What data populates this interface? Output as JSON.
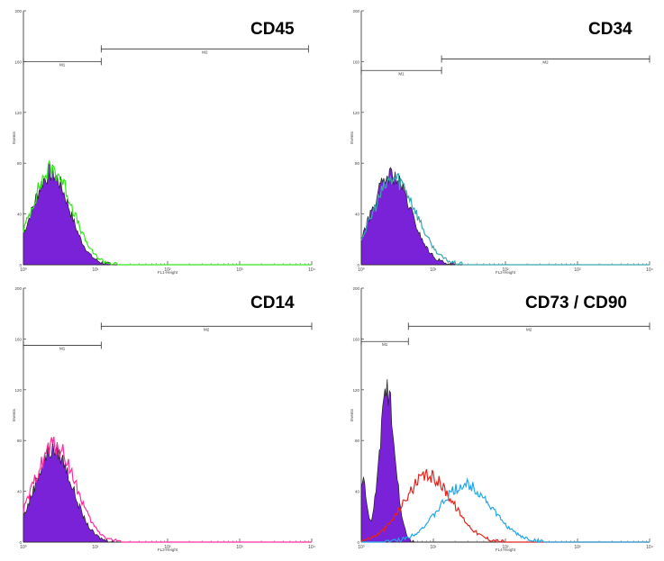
{
  "chart_data": [
    {
      "type": "histogram-overlay",
      "title": "CD45",
      "xlabel": "FL1-Height",
      "ylabel": "Events",
      "x_scale": "log",
      "xlim": [
        1,
        10000
      ],
      "ylim": [
        0,
        200
      ],
      "x_ticks": [
        "10⁰",
        "10¹",
        "10²",
        "10³",
        "10⁴"
      ],
      "y_ticks": [
        "0",
        "40",
        "80",
        "120",
        "160",
        "200"
      ],
      "markers": [
        {
          "label": "M1",
          "x_range": [
            1,
            12
          ],
          "y": 160
        },
        {
          "label": "M2",
          "x_range": [
            12,
            9000
          ],
          "y": 170
        }
      ],
      "series": [
        {
          "role": "isotype-filled",
          "color": "#7a22d8",
          "peak_x": 2.4,
          "peak_y": 72,
          "sigma_decades": 0.26
        },
        {
          "role": "marker-outline",
          "color": "#33e81a",
          "peak_x": 2.5,
          "peak_y": 75,
          "sigma_decades": 0.28
        }
      ]
    },
    {
      "type": "histogram-overlay",
      "title": "CD34",
      "xlabel": "FL2-Height",
      "ylabel": "Events",
      "x_scale": "log",
      "xlim": [
        1,
        10000
      ],
      "ylim": [
        0,
        200
      ],
      "x_ticks": [
        "10⁰",
        "10¹",
        "10²",
        "10³",
        "10⁴"
      ],
      "y_ticks": [
        "0",
        "40",
        "80",
        "120",
        "160",
        "200"
      ],
      "markers": [
        {
          "label": "M1",
          "x_range": [
            1,
            13
          ],
          "y": 153
        },
        {
          "label": "M2",
          "x_range": [
            13,
            10000
          ],
          "y": 162
        }
      ],
      "series": [
        {
          "role": "isotype-filled",
          "color": "#7a22d8",
          "peak_x": 2.6,
          "peak_y": 70,
          "sigma_decades": 0.27
        },
        {
          "role": "marker-outline",
          "color": "#3aa7ad",
          "peak_x": 2.9,
          "peak_y": 68,
          "sigma_decades": 0.3
        }
      ]
    },
    {
      "type": "histogram-overlay",
      "title": "CD14",
      "xlabel": "FL3-Height",
      "ylabel": "Events",
      "x_scale": "log",
      "xlim": [
        1,
        10000
      ],
      "ylim": [
        0,
        200
      ],
      "x_ticks": [
        "10⁰",
        "10¹",
        "10²",
        "10³",
        "10⁴"
      ],
      "y_ticks": [
        "0",
        "40",
        "80",
        "120",
        "160",
        "200"
      ],
      "markers": [
        {
          "label": "M1",
          "x_range": [
            1,
            12
          ],
          "y": 155
        },
        {
          "label": "M2",
          "x_range": [
            12,
            10000
          ],
          "y": 170
        }
      ],
      "series": [
        {
          "role": "isotype-filled",
          "color": "#7a22d8",
          "peak_x": 2.6,
          "peak_y": 73,
          "sigma_decades": 0.26
        },
        {
          "role": "marker-outline",
          "color": "#ff2a9e",
          "peak_x": 2.7,
          "peak_y": 76,
          "sigma_decades": 0.29
        }
      ]
    },
    {
      "type": "histogram-overlay",
      "title": "CD73 / CD90",
      "xlabel": "FL4-Height",
      "ylabel": "Events",
      "x_scale": "log",
      "xlim": [
        1,
        10000
      ],
      "ylim": [
        0,
        200
      ],
      "x_ticks": [
        "10⁰",
        "10¹",
        "10²",
        "10³",
        "10⁴"
      ],
      "y_ticks": [
        "0",
        "40",
        "80",
        "120",
        "160",
        "200"
      ],
      "markers": [
        {
          "label": "M1",
          "x_range": [
            1,
            4.5
          ],
          "y": 158
        },
        {
          "label": "M2",
          "x_range": [
            4.5,
            10000
          ],
          "y": 170
        }
      ],
      "series": [
        {
          "role": "isotype-filled",
          "color": "#7a22d8",
          "peak_x": 2.3,
          "peak_y": 118,
          "sigma_decades": 0.11,
          "secondary_peak_x": 1.05,
          "secondary_peak_y": 48,
          "secondary_sigma_decades": 0.05
        },
        {
          "role": "CD73-outline",
          "color": "#e3241b",
          "peak_x": 8.5,
          "peak_y": 52,
          "sigma_decades": 0.34
        },
        {
          "role": "CD90-outline",
          "color": "#22a8e8",
          "peak_x": 28,
          "peak_y": 45,
          "sigma_decades": 0.36
        }
      ]
    }
  ]
}
